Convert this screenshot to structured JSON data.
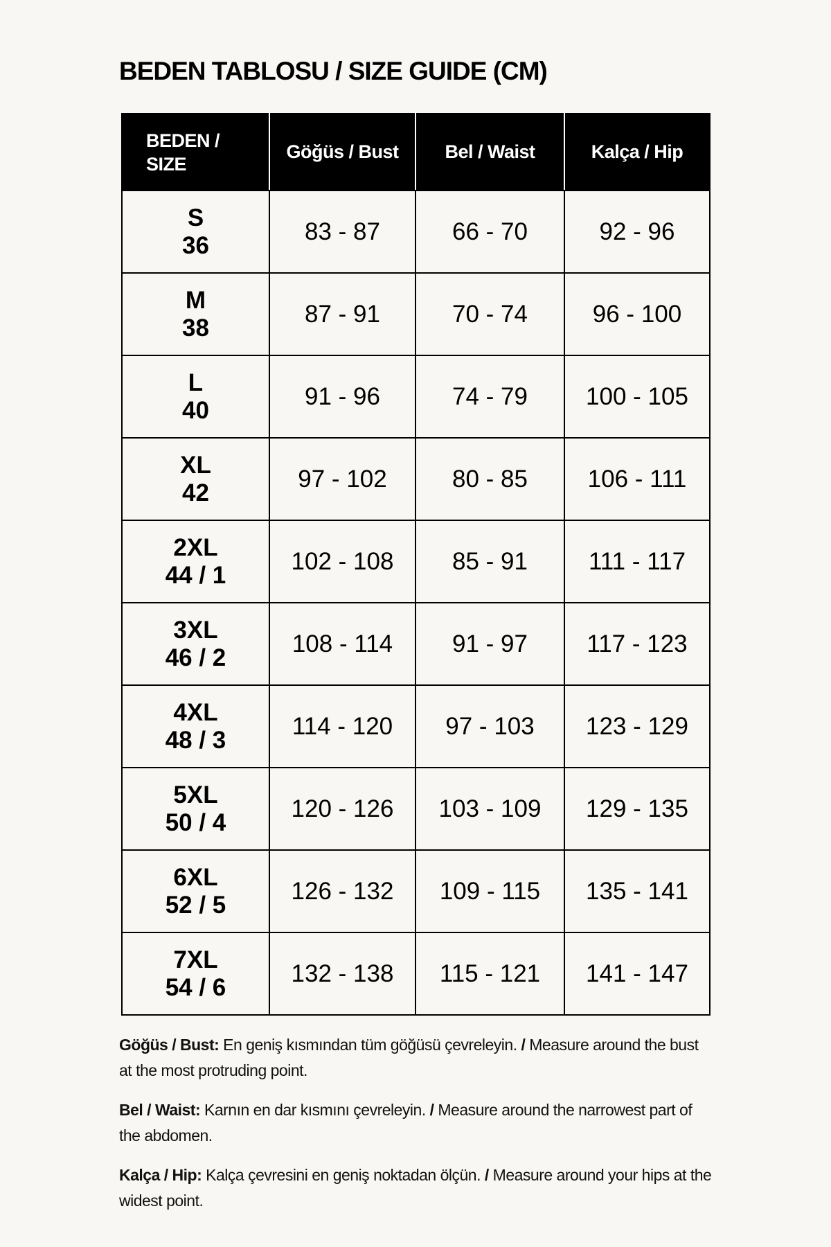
{
  "title": "BEDEN TABLOSU / SIZE GUIDE (CM)",
  "table": {
    "headers": [
      "BEDEN / SIZE",
      "Göğüs / Bust",
      "Bel / Waist",
      "Kalça / Hip"
    ],
    "header_size_line1": "BEDEN /",
    "header_size_line2": "SIZE",
    "rows": [
      {
        "size": "S",
        "eu": "36",
        "bust": "83 - 87",
        "waist": "66 - 70",
        "hip": "92 - 96"
      },
      {
        "size": "M",
        "eu": "38",
        "bust": "87 - 91",
        "waist": "70 - 74",
        "hip": "96 - 100"
      },
      {
        "size": "L",
        "eu": "40",
        "bust": "91 - 96",
        "waist": "74 - 79",
        "hip": "100 - 105"
      },
      {
        "size": "XL",
        "eu": "42",
        "bust": "97 - 102",
        "waist": "80 - 85",
        "hip": "106 - 111"
      },
      {
        "size": "2XL",
        "eu": "44 / 1",
        "bust": "102 - 108",
        "waist": "85 - 91",
        "hip": "111 - 117"
      },
      {
        "size": "3XL",
        "eu": "46 / 2",
        "bust": "108 - 114",
        "waist": "91 - 97",
        "hip": "117 - 123"
      },
      {
        "size": "4XL",
        "eu": "48 / 3",
        "bust": "114 - 120",
        "waist": "97 - 103",
        "hip": "123 - 129"
      },
      {
        "size": "5XL",
        "eu": "50 / 4",
        "bust": "120 - 126",
        "waist": "103 - 109",
        "hip": "129 - 135"
      },
      {
        "size": "6XL",
        "eu": "52 / 5",
        "bust": "126 - 132",
        "waist": "109 - 115",
        "hip": "135 - 141"
      },
      {
        "size": "7XL",
        "eu": "54 / 6",
        "bust": "132 - 138",
        "waist": "115 - 121",
        "hip": "141 - 147"
      }
    ]
  },
  "notes": [
    {
      "label": "Göğüs / Bust:",
      "tr": " En geniş kısmından tüm göğüsü çevreleyin. ",
      "sep": "/",
      "en": " Measure around the bust at the most protruding point."
    },
    {
      "label": "Bel / Waist:",
      "tr": " Karnın en dar kısmını çevreleyin. ",
      "sep": "/",
      "en": " Measure around the narrowest part of the abdomen."
    },
    {
      "label": "Kalça / Hip:",
      "tr": " Kalça çevresini en geniş noktadan ölçün. ",
      "sep": "/",
      "en": " Measure around your hips at the widest point."
    }
  ]
}
